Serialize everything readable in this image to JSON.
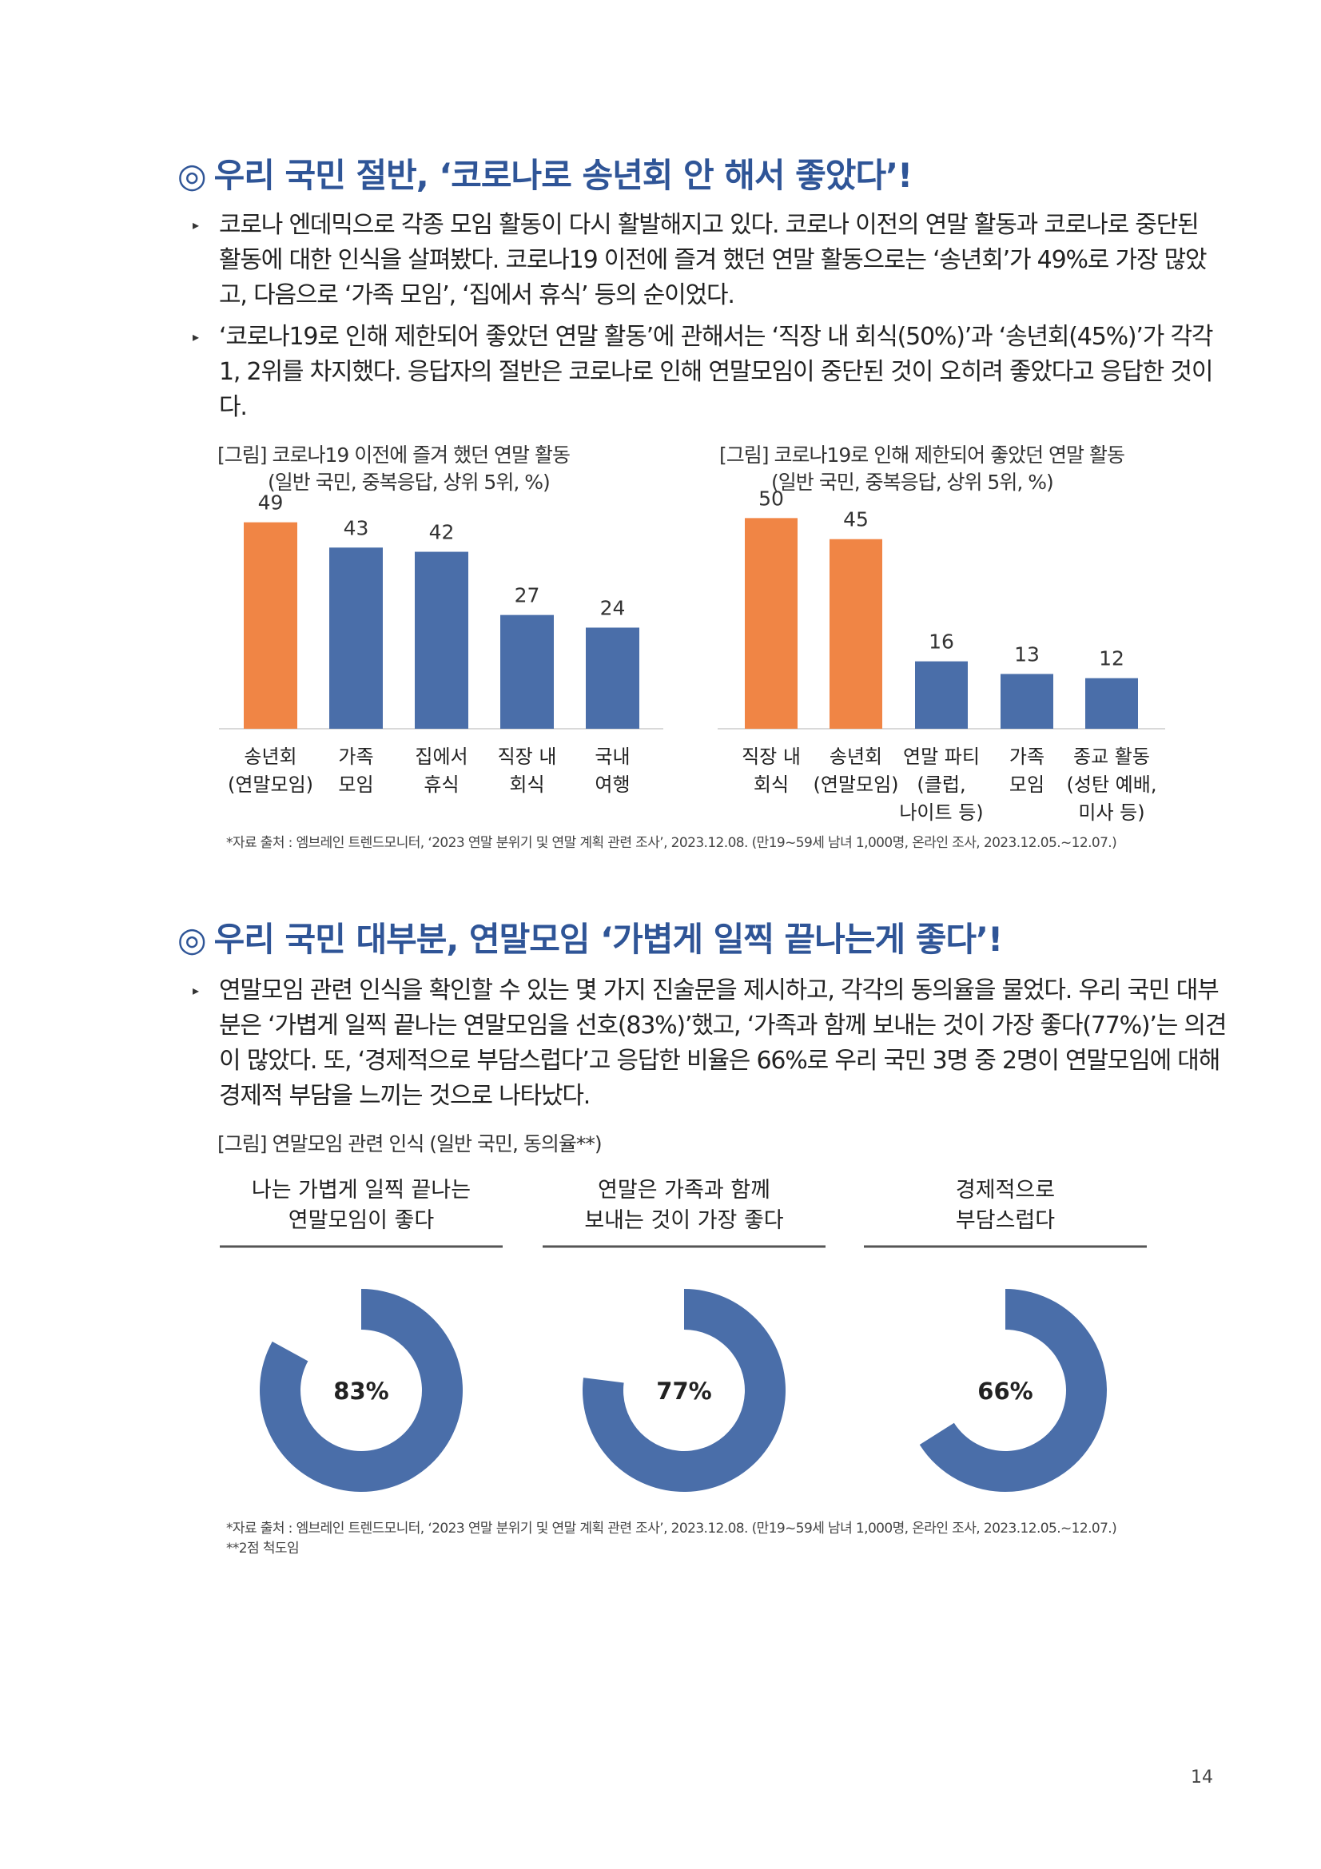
{
  "section1": {
    "title": "우리 국민 절반, ‘코로나로 송년회 안 해서 좋았다’!",
    "paragraphs": [
      {
        "lines": [
          "코로나 엔데믹으로 각종 모임 활동이 다시 활발해지고 있다. 코로나 이전의 연말 활동과 코로나로 중단된",
          "활동에 대한 인식을 살펴봤다. 코로나19 이전에 즐겨 했던 연말 활동으로는 ‘송년회’가 49%로 가장 많았",
          "고, 다음으로 ‘가족 모임’, ‘집에서 휴식’ 등의 순이었다."
        ]
      },
      {
        "lines": [
          "‘코로나19로 인해 제한되어 좋았던 연말 활동’에 관해서는 ‘직장 내 회식(50%)’과 ‘송년회(45%)’가 각각",
          "1, 2위를 차지했다. 응답자의 절반은 코로나로 인해 연말모임이 중단된 것이 오히려 좋았다고 응답한 것이",
          "다."
        ]
      }
    ],
    "source": "*자료 출처 : 엠브레인 트렌드모니터, ‘2023 연말 분위기 및 연말 계획 관련 조사’, 2023.12.08. (만19~59세 남녀 1,000명, 온라인 조사, 2023.12.05.~12.07.)"
  },
  "section2": {
    "title": "우리 국민 대부분, 연말모임 ‘가볍게 일찍 끝나는게 좋다’!",
    "paragraphs": [
      {
        "lines": [
          "연말모임 관련 인식을 확인할 수 있는 몇 가지 진술문을 제시하고, 각각의 동의율을 물었다. 우리 국민 대부",
          "분은 ‘가볍게 일찍 끝나는 연말모임을 선호(83%)’했고, ‘가족과 함께 보내는 것이 가장 좋다(77%)’는 의견",
          "이 많았다. 또, ‘경제적으로 부담스럽다’고 응답한 비율은 66%로 우리 국민 3명 중 2명이 연말모임에 대해",
          "경제적 부담을 느끼는 것으로 나타났다."
        ]
      }
    ],
    "source_lines": [
      "*자료 출처 : 엠브레인 트렌드모니터, ‘2023 연말 분위기 및 연말 계획 관련 조사’, 2023.12.08. (만19~59세 남녀 1,000명, 온라인 조사, 2023.12.05.~12.07.)",
      "**2점 척도임"
    ]
  },
  "page_number": "14",
  "colors": {
    "accent": "#2f5597",
    "highlight": "#f08545",
    "bar": "#4a6ea9",
    "ring": "#4a6ea9"
  },
  "chart_data": [
    {
      "type": "bar",
      "title": "[그림] 코로나19 이전에 즐겨 했던 연말 활동",
      "subtitle": "(일반 국민, 중복응답, 상위 5위, %)",
      "categories": [
        [
          "송년회",
          "(연말모임)"
        ],
        [
          "가족",
          "모임"
        ],
        [
          "집에서",
          "휴식"
        ],
        [
          "직장 내",
          "회식"
        ],
        [
          "국내",
          "여행"
        ]
      ],
      "values": [
        49,
        43,
        42,
        27,
        24
      ],
      "highlight": [
        true,
        false,
        false,
        false,
        false
      ],
      "ylim": [
        0,
        55
      ]
    },
    {
      "type": "bar",
      "title": "[그림] 코로나19로 인해 제한되어 좋았던 연말 활동",
      "subtitle": "(일반 국민, 중복응답, 상위 5위, %)",
      "categories": [
        [
          "직장 내",
          "회식"
        ],
        [
          "송년회",
          "(연말모임)"
        ],
        [
          "연말 파티",
          "(클럽,",
          "나이트 등)"
        ],
        [
          "가족",
          "모임"
        ],
        [
          "종교 활동",
          "(성탄 예배,",
          "미사 등)"
        ]
      ],
      "values": [
        50,
        45,
        16,
        13,
        12
      ],
      "highlight": [
        true,
        true,
        false,
        false,
        false
      ],
      "ylim": [
        0,
        55
      ]
    },
    {
      "type": "pie",
      "title": "[그림] 연말모임 관련 인식 (일반 국민, 동의율**)",
      "items": [
        {
          "label_lines": [
            "나는 가볍게 일찍 끝나는",
            "연말모임이 좋다"
          ],
          "value": 83,
          "display": "83%"
        },
        {
          "label_lines": [
            "연말은 가족과 함께",
            "보내는 것이 가장 좋다"
          ],
          "value": 77,
          "display": "77%"
        },
        {
          "label_lines": [
            "경제적으로",
            "부담스럽다"
          ],
          "value": 66,
          "display": "66%"
        }
      ]
    }
  ]
}
